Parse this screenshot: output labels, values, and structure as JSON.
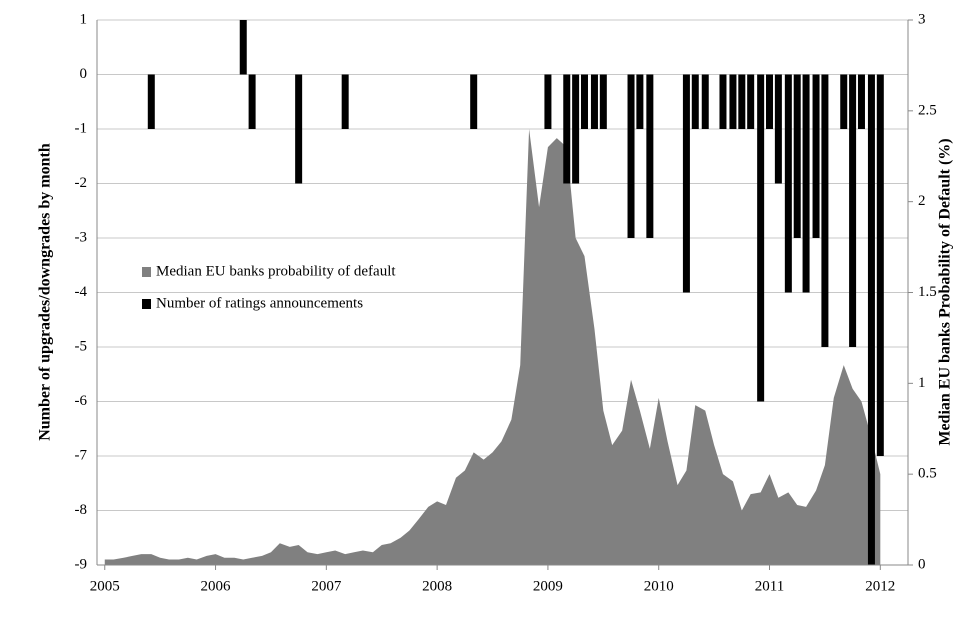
{
  "chart_data": {
    "type": "bar-area",
    "y_label": "Number of upgrades/downgrades by month",
    "y2_label": "Median EU banks Probability of Default (%)",
    "xlim": [
      2004.93,
      2012.25
    ],
    "xticks": [
      2005,
      2006,
      2007,
      2008,
      2009,
      2010,
      2011,
      2012
    ],
    "ylim": [
      -9,
      1
    ],
    "yticks": [
      1,
      0,
      -1,
      -2,
      -3,
      -4,
      -5,
      -6,
      -7,
      -8,
      -9
    ],
    "y2lim": [
      0,
      3
    ],
    "y2ticks": [
      0,
      0.5,
      1,
      1.5,
      2,
      2.5,
      3
    ],
    "grid": true,
    "legend": "left",
    "series": [
      {
        "name": "Median EU banks probability of default",
        "kind": "area",
        "axis": "y2",
        "color": "#808080",
        "x": [
          2005,
          2005.08,
          2005.17,
          2005.25,
          2005.33,
          2005.42,
          2005.5,
          2005.58,
          2005.67,
          2005.75,
          2005.83,
          2005.92,
          2006,
          2006.08,
          2006.17,
          2006.25,
          2006.33,
          2006.42,
          2006.5,
          2006.58,
          2006.67,
          2006.75,
          2006.83,
          2006.92,
          2007,
          2007.08,
          2007.17,
          2007.25,
          2007.33,
          2007.42,
          2007.5,
          2007.58,
          2007.67,
          2007.75,
          2007.83,
          2007.92,
          2008,
          2008.08,
          2008.17,
          2008.25,
          2008.33,
          2008.42,
          2008.5,
          2008.58,
          2008.67,
          2008.75,
          2008.83,
          2008.92,
          2009,
          2009.08,
          2009.17,
          2009.25,
          2009.33,
          2009.42,
          2009.5,
          2009.58,
          2009.67,
          2009.75,
          2009.83,
          2009.92,
          2010,
          2010.08,
          2010.17,
          2010.25,
          2010.33,
          2010.42,
          2010.5,
          2010.58,
          2010.67,
          2010.75,
          2010.83,
          2010.92,
          2011,
          2011.08,
          2011.17,
          2011.25,
          2011.33,
          2011.42,
          2011.5,
          2011.58,
          2011.67,
          2011.75,
          2011.83,
          2011.92,
          2012
        ],
        "values": [
          0.03,
          0.03,
          0.04,
          0.05,
          0.06,
          0.06,
          0.04,
          0.03,
          0.03,
          0.04,
          0.03,
          0.05,
          0.06,
          0.04,
          0.04,
          0.03,
          0.04,
          0.05,
          0.07,
          0.12,
          0.1,
          0.11,
          0.07,
          0.06,
          0.07,
          0.08,
          0.06,
          0.07,
          0.08,
          0.07,
          0.11,
          0.12,
          0.15,
          0.19,
          0.25,
          0.32,
          0.35,
          0.33,
          0.48,
          0.52,
          0.62,
          0.58,
          0.62,
          0.68,
          0.8,
          1.1,
          2.4,
          1.97,
          2.3,
          2.35,
          2.3,
          1.8,
          1.7,
          1.3,
          0.85,
          0.66,
          0.74,
          1.02,
          0.85,
          0.64,
          0.92,
          0.68,
          0.44,
          0.52,
          0.88,
          0.85,
          0.66,
          0.5,
          0.46,
          0.3,
          0.39,
          0.4,
          0.5,
          0.37,
          0.4,
          0.33,
          0.32,
          0.41,
          0.55,
          0.92,
          1.1,
          0.97,
          0.9,
          0.7,
          0.5
        ]
      },
      {
        "name": "Number of ratings announcements",
        "kind": "bar",
        "axis": "y",
        "color": "#000000",
        "x": [
          2005.42,
          2006.25,
          2006.33,
          2006.75,
          2007.17,
          2008.33,
          2009,
          2009.17,
          2009.25,
          2009.33,
          2009.42,
          2009.5,
          2009.75,
          2009.83,
          2009.92,
          2010.25,
          2010.33,
          2010.42,
          2010.58,
          2010.67,
          2010.75,
          2010.83,
          2010.92,
          2011,
          2011.08,
          2011.17,
          2011.25,
          2011.33,
          2011.42,
          2011.5,
          2011.67,
          2011.75,
          2011.83,
          2011.92,
          2012
        ],
        "values": [
          -1,
          1,
          -1,
          -2,
          -1,
          -1,
          -1,
          -2,
          -2,
          -1,
          -1,
          -1,
          -3,
          -1,
          -3,
          -4,
          -1,
          -1,
          -1,
          -1,
          -1,
          -1,
          -6,
          -1,
          -2,
          -4,
          -3,
          -4,
          -3,
          -5,
          -1,
          -5,
          -1,
          -9,
          -7
        ]
      }
    ]
  }
}
